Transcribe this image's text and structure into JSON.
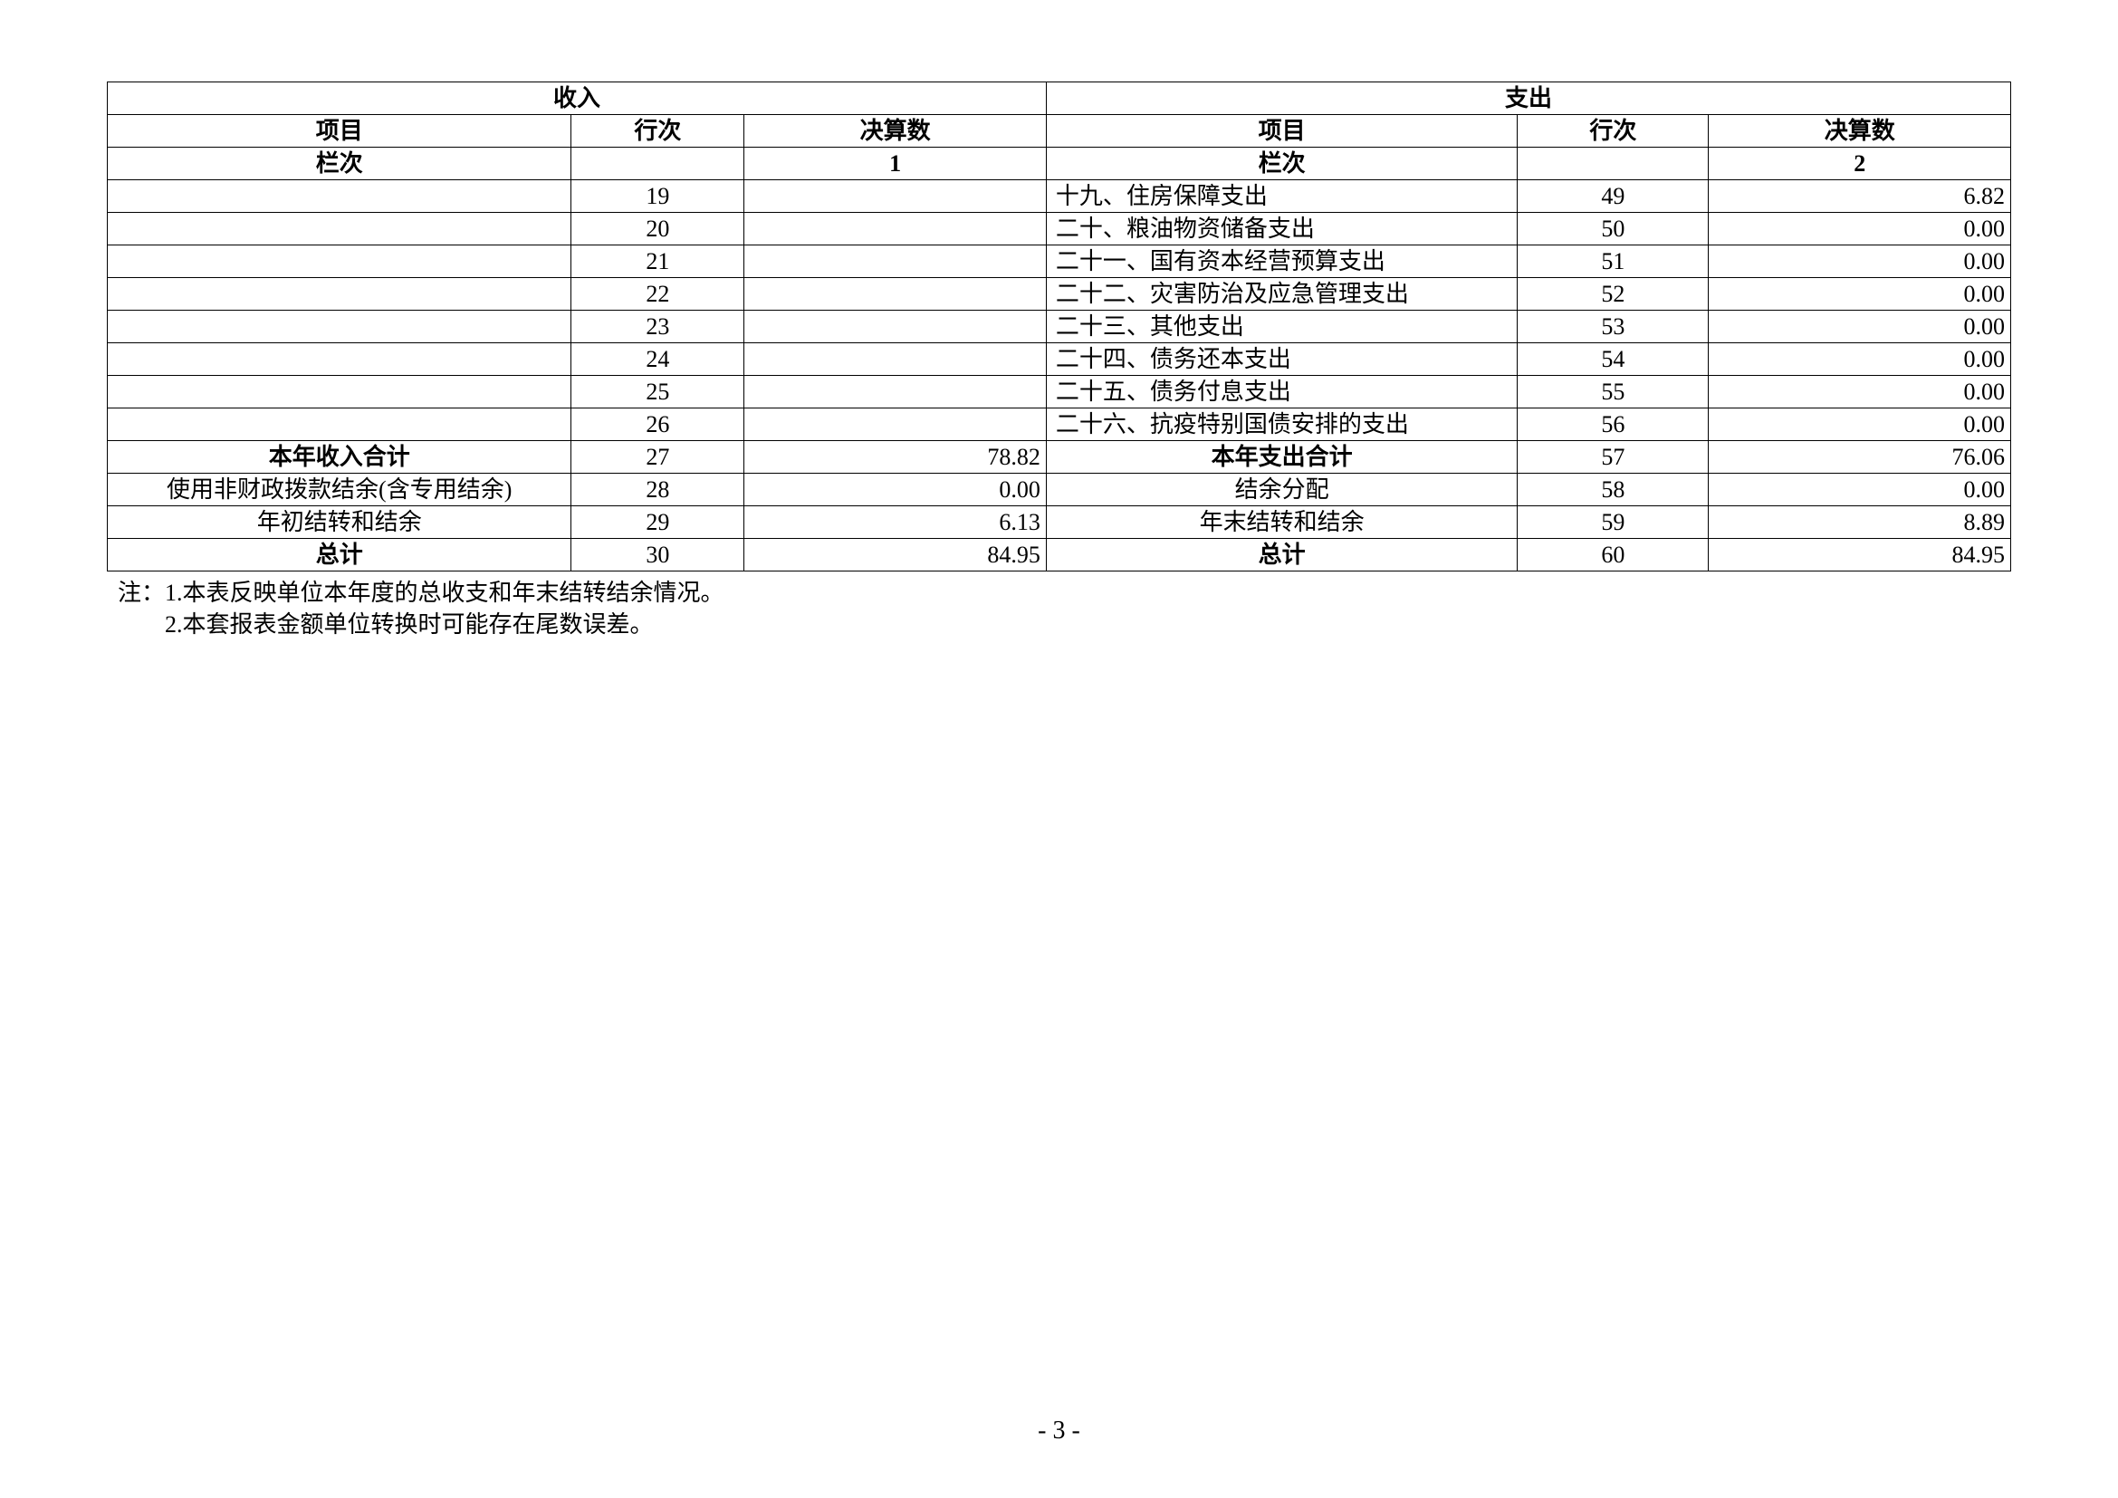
{
  "table": {
    "header": {
      "income_group": "收入",
      "expense_group": "支出",
      "item": "项目",
      "line_no": "行次",
      "final": "决算数",
      "column_label": "栏次",
      "income_final_col_no": "1",
      "expense_final_col_no": "2"
    },
    "rows": [
      {
        "inc_item": "",
        "inc_line": "19",
        "inc_val": "",
        "exp_item": "十九、住房保障支出",
        "exp_line": "49",
        "exp_val": "6.82",
        "bold": false
      },
      {
        "inc_item": "",
        "inc_line": "20",
        "inc_val": "",
        "exp_item": "二十、粮油物资储备支出",
        "exp_line": "50",
        "exp_val": "0.00",
        "bold": false
      },
      {
        "inc_item": "",
        "inc_line": "21",
        "inc_val": "",
        "exp_item": "二十一、国有资本经营预算支出",
        "exp_line": "51",
        "exp_val": "0.00",
        "bold": false
      },
      {
        "inc_item": "",
        "inc_line": "22",
        "inc_val": "",
        "exp_item": "二十二、灾害防治及应急管理支出",
        "exp_line": "52",
        "exp_val": "0.00",
        "bold": false
      },
      {
        "inc_item": "",
        "inc_line": "23",
        "inc_val": "",
        "exp_item": "二十三、其他支出",
        "exp_line": "53",
        "exp_val": "0.00",
        "bold": false
      },
      {
        "inc_item": "",
        "inc_line": "24",
        "inc_val": "",
        "exp_item": "二十四、债务还本支出",
        "exp_line": "54",
        "exp_val": "0.00",
        "bold": false
      },
      {
        "inc_item": "",
        "inc_line": "25",
        "inc_val": "",
        "exp_item": "二十五、债务付息支出",
        "exp_line": "55",
        "exp_val": "0.00",
        "bold": false
      },
      {
        "inc_item": "",
        "inc_line": "26",
        "inc_val": "",
        "exp_item": "二十六、抗疫特别国债安排的支出",
        "exp_line": "56",
        "exp_val": "0.00",
        "bold": false
      },
      {
        "inc_item": "本年收入合计",
        "inc_line": "27",
        "inc_val": "78.82",
        "exp_item": "本年支出合计",
        "exp_line": "57",
        "exp_val": "76.06",
        "bold": true,
        "center_items": true
      },
      {
        "inc_item": "使用非财政拨款结余(含专用结余)",
        "inc_line": "28",
        "inc_val": "0.00",
        "exp_item": "结余分配",
        "exp_line": "58",
        "exp_val": "0.00",
        "bold": false,
        "center_items": true
      },
      {
        "inc_item": "年初结转和结余",
        "inc_line": "29",
        "inc_val": "6.13",
        "exp_item": "年末结转和结余",
        "exp_line": "59",
        "exp_val": "8.89",
        "bold": false,
        "center_items": true
      },
      {
        "inc_item": "总计",
        "inc_line": "30",
        "inc_val": "84.95",
        "exp_item": "总计",
        "exp_line": "60",
        "exp_val": "84.95",
        "bold": true,
        "center_items": true
      }
    ]
  },
  "notes": {
    "line1": "注：1.本表反映单位本年度的总收支和年末结转结余情况。",
    "line2": "　　2.本套报表金额单位转换时可能存在尾数误差。"
  },
  "page_number": "- 3 -"
}
